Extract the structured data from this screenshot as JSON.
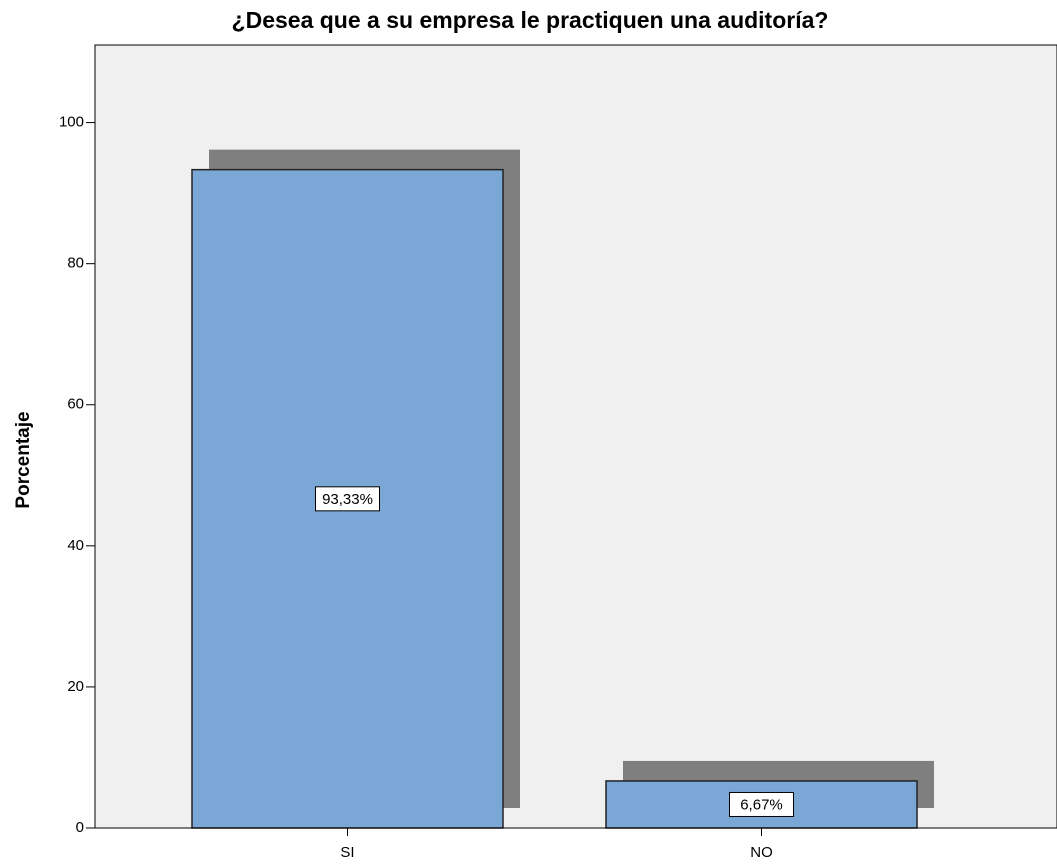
{
  "chart_data": {
    "type": "bar",
    "title": "¿Desea que a su empresa le practiquen una auditoría?",
    "y_label": "Porcentaje",
    "categories": [
      "SI",
      "NO"
    ],
    "values": [
      93.33,
      6.67
    ],
    "value_labels": [
      "93,33%",
      "6,67%"
    ],
    "color": "#7ba7d7",
    "shadow_color": "#7f7f7f",
    "ylim": [
      0,
      111
    ],
    "yticks": [
      0,
      20,
      40,
      60,
      80,
      100
    ],
    "grid": false
  }
}
